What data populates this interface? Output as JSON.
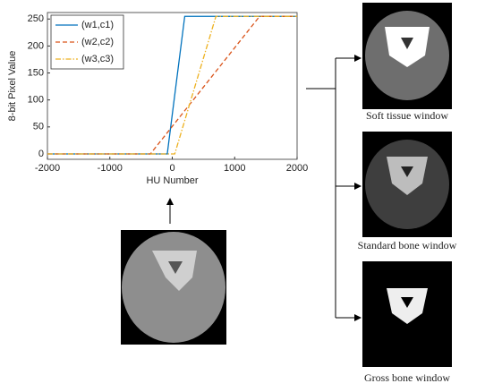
{
  "chart_data": {
    "type": "line",
    "xlabel": "HU Number",
    "ylabel": "8-bit Pixel Value",
    "xlim": [
      -2000,
      2000
    ],
    "ylim": [
      -10,
      262
    ],
    "xticks": [
      -2000,
      -1000,
      0,
      1000,
      2000
    ],
    "yticks": [
      0,
      50,
      100,
      150,
      200,
      250
    ],
    "legend": "upper left",
    "series": [
      {
        "name": "(w1,c1)",
        "color": "#0072bd",
        "style": "solid",
        "x": [
          -2000,
          -80,
          200,
          2000
        ],
        "values": [
          0,
          0,
          255,
          255
        ]
      },
      {
        "name": "(w2,c2)",
        "color": "#d95319",
        "style": "dashed",
        "x": [
          -2000,
          -350,
          1400,
          2000
        ],
        "values": [
          0,
          0,
          255,
          255
        ]
      },
      {
        "name": "(w3,c3)",
        "color": "#edb120",
        "style": "dashdot",
        "x": [
          -2000,
          40,
          700,
          2000
        ],
        "values": [
          0,
          0,
          255,
          255
        ]
      }
    ]
  },
  "captions": [
    "Soft tissue window",
    "Standard bone window",
    "Gross bone window"
  ]
}
